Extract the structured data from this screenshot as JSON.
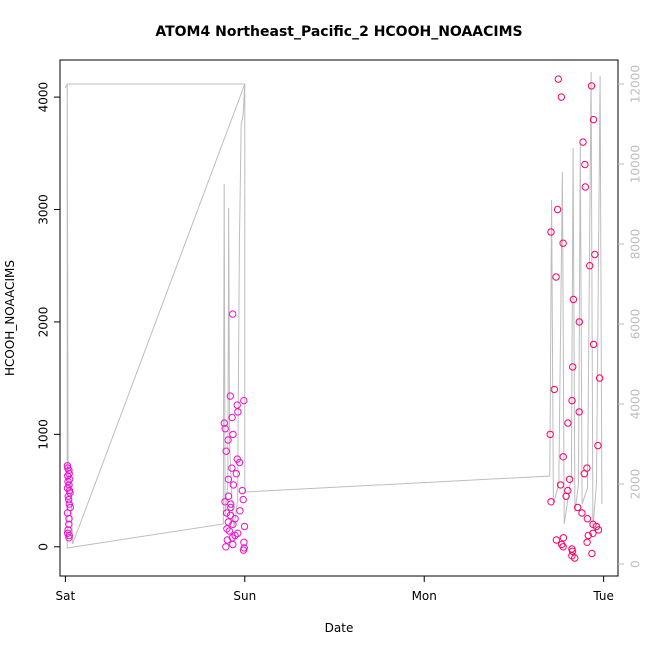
{
  "chart_data": {
    "type": "scatter",
    "title": "ATOM4 Northeast_Pacific_2 HCOOH_NOAACIMS",
    "xlabel": "Date",
    "ylabel": "HCOOH_NOAACIMS",
    "x_ticks": [
      "Sat",
      "Sun",
      "Mon",
      "Tue"
    ],
    "x_range": [
      -0.03,
      3.08
    ],
    "y_ticks": [
      0,
      1000,
      2000,
      3000,
      4000
    ],
    "y_range": [
      -260,
      4330
    ],
    "y2_ticks": [
      0,
      2000,
      4000,
      6000,
      8000,
      10000,
      12000
    ],
    "y2_range": [
      -300,
      12600
    ],
    "colors": {
      "points_early": "#ee11cc",
      "points_late": "#ff0066",
      "altitude_line": "#bdbdbd"
    },
    "series": [
      {
        "marker": "open-circle",
        "axis": "left",
        "clusters": [
          {
            "x_start": 0.01,
            "x_end": 0.03,
            "values": [
              80,
              100,
              120,
              150,
              200,
              250,
              300,
              350,
              380,
              420,
              450,
              480,
              500,
              520,
              550,
              580,
              600,
              630,
              650,
              680,
              700,
              720
            ]
          },
          {
            "x_start": 0.88,
            "x_end": 1.0,
            "values": [
              -30,
              -10,
              0,
              20,
              40,
              60,
              80,
              100,
              120,
              140,
              160,
              180,
              200,
              220,
              250,
              280,
              300,
              320,
              350,
              380,
              400,
              420,
              450,
              500,
              550,
              600,
              650,
              700,
              750,
              780,
              850,
              950,
              1000,
              1050,
              1100,
              1150,
              1200,
              1260,
              1300,
              1340,
              2070
            ]
          },
          {
            "x_start": 2.7,
            "x_end": 2.98,
            "values": [
              -100,
              -80,
              -60,
              -40,
              -20,
              0,
              20,
              40,
              60,
              80,
              100,
              120,
              150,
              180,
              200,
              250,
              300,
              350,
              400,
              450,
              500,
              550,
              600,
              650,
              700,
              800,
              900,
              1000,
              1100,
              1200,
              1300,
              1400,
              1500,
              1600,
              1800,
              2000,
              2200,
              2400,
              2500,
              2600,
              2700,
              2800,
              3000,
              3200,
              3400,
              3600,
              3800,
              4000,
              4100,
              4160
            ]
          }
        ]
      },
      {
        "marker": "line",
        "axis": "right",
        "path": [
          [
            0.0,
            11900
          ],
          [
            0.01,
            12000
          ],
          [
            0.015,
            2500
          ],
          [
            0.02,
            1900
          ],
          [
            0.03,
            2000
          ],
          [
            0.04,
            500
          ],
          [
            1.0,
            12000
          ],
          [
            0.01,
            12000
          ],
          [
            0.01,
            400
          ],
          [
            0.88,
            1000
          ],
          [
            0.885,
            9500
          ],
          [
            0.89,
            1200
          ],
          [
            0.905,
            2000
          ],
          [
            0.91,
            8900
          ],
          [
            0.915,
            3000
          ],
          [
            0.93,
            1500
          ],
          [
            0.94,
            900
          ],
          [
            0.96,
            1600
          ],
          [
            0.97,
            8000
          ],
          [
            0.98,
            11000
          ],
          [
            0.99,
            11200
          ],
          [
            1.0,
            12000
          ],
          [
            1.0,
            1800
          ],
          [
            2.7,
            2200
          ],
          [
            2.71,
            9100
          ],
          [
            2.72,
            1500
          ],
          [
            2.75,
            2000
          ],
          [
            2.77,
            9800
          ],
          [
            2.78,
            1000
          ],
          [
            2.82,
            2200
          ],
          [
            2.83,
            10400
          ],
          [
            2.84,
            1300
          ],
          [
            2.86,
            2000
          ],
          [
            2.87,
            10500
          ],
          [
            2.88,
            1500
          ],
          [
            2.91,
            1900
          ],
          [
            2.93,
            12300
          ],
          [
            2.94,
            900
          ],
          [
            2.96,
            2000
          ],
          [
            2.98,
            12200
          ],
          [
            2.99,
            1500
          ]
        ]
      }
    ]
  }
}
